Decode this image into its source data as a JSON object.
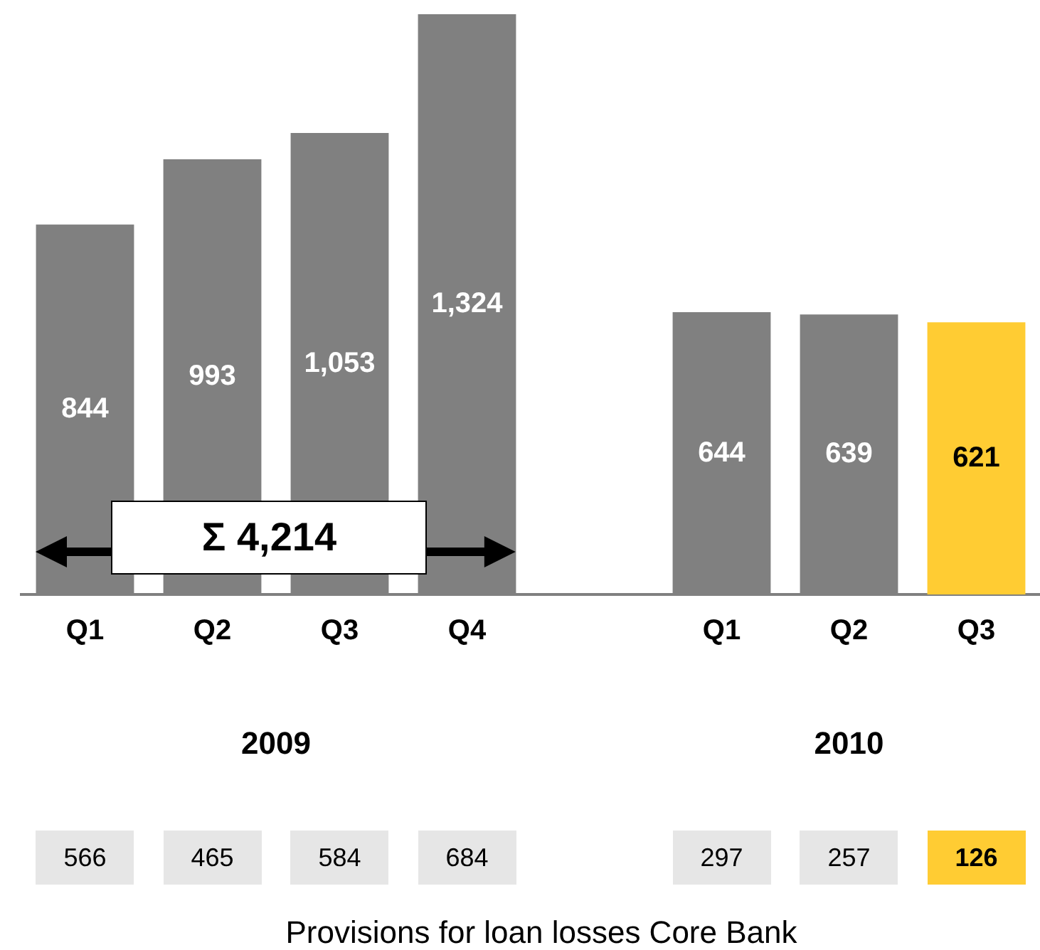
{
  "chart_data": {
    "type": "bar",
    "categories": [
      "Q1",
      "Q2",
      "Q3",
      "Q4",
      null,
      "Q1",
      "Q2",
      "Q3"
    ],
    "values": [
      844,
      993,
      1053,
      1324,
      null,
      644,
      639,
      621
    ],
    "colors": [
      "#808080",
      "#808080",
      "#808080",
      "#808080",
      "#808080",
      "#808080",
      "#808080",
      "#ffcc33"
    ],
    "value_labels": [
      "844",
      "993",
      "1,053",
      "1,324",
      null,
      "644",
      "639",
      "621"
    ],
    "grid": false,
    "legend": false,
    "annotations": [
      "Σ 4,214",
      "2009",
      "2010",
      "566",
      "465",
      "584",
      "684",
      "297",
      "257",
      "126",
      "Provisions for loan losses Core Bank"
    ]
  }
}
